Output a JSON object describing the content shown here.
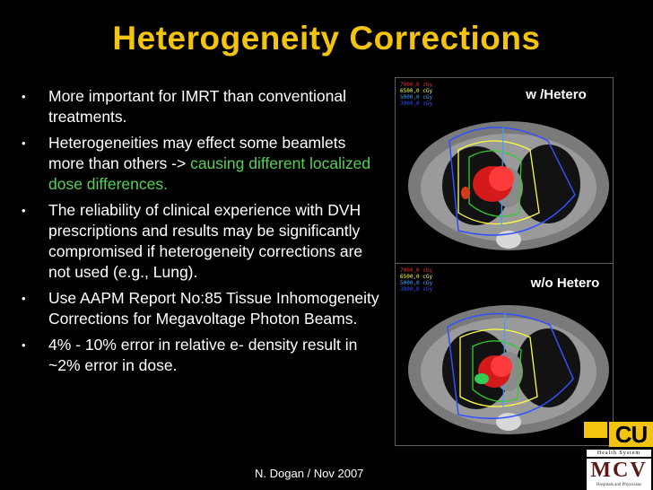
{
  "slide": {
    "title": "Heterogeneity Corrections",
    "bullets": [
      {
        "text": "More important for IMRT than conventional treatments.",
        "highlight": ""
      },
      {
        "text": "Heterogeneities may effect some beamlets more than others -> ",
        "highlight": "causing different localized dose differences."
      },
      {
        "text": "The reliability of clinical experience with DVH prescriptions and results may be significantly compromised if heterogeneity corrections are not used (e.g., Lung).",
        "highlight": ""
      },
      {
        "text": "Use AAPM Report No:85 Tissue Inhomogeneity Corrections for Megavoltage Photon Beams.",
        "highlight": ""
      },
      {
        "text": "4% - 10% error in relative e- density result in ~2% error in dose.",
        "highlight": ""
      }
    ],
    "bullet_symbol": "•",
    "footer": "N. Dogan / Nov 2007"
  },
  "images": {
    "top_label": "w /Hetero",
    "bottom_label": "w/o Hetero",
    "dose_legend": [
      "7000,0 cGy",
      "6500,0 cGy",
      "5000,0 cGy",
      "3000,0 cGy"
    ],
    "legend_colors": [
      "#e03030",
      "#ffff40",
      "#40a0ff",
      "#3050ff"
    ]
  },
  "logo": {
    "brand": "CU",
    "system": "Health System",
    "hospital": "MCV",
    "hospital_sub": "Hospitals and Physicians"
  },
  "colors": {
    "title": "#f2c30f",
    "highlight": "#55d255",
    "background": "#000000"
  }
}
